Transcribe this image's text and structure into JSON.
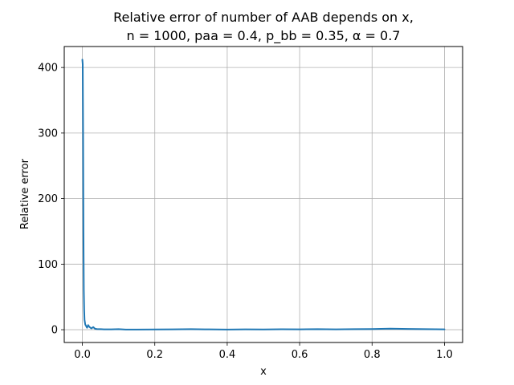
{
  "chart_data": {
    "type": "line",
    "title_lines": [
      "Relative error of number of AAB depends on x,",
      "n = 1000, paa = 0.4, p_bb = 0.35, α = 0.7"
    ],
    "xlabel": "x",
    "ylabel": "Relative error",
    "xlim": [
      -0.05,
      1.05
    ],
    "ylim": [
      -19.5,
      432
    ],
    "x_ticks": [
      0.0,
      0.2,
      0.4,
      0.6,
      0.8,
      1.0
    ],
    "x_tick_labels": [
      "0.0",
      "0.2",
      "0.4",
      "0.6",
      "0.8",
      "1.0"
    ],
    "y_ticks": [
      0,
      100,
      200,
      300,
      400
    ],
    "y_tick_labels": [
      "0",
      "100",
      "200",
      "300",
      "400"
    ],
    "grid": true,
    "line_color": "#1f77b4",
    "series": [
      {
        "x": [
          0.0,
          0.001,
          0.002,
          0.003,
          0.004,
          0.005,
          0.006,
          0.008,
          0.01,
          0.013,
          0.016,
          0.02,
          0.025,
          0.03,
          0.035,
          0.04,
          0.05,
          0.06,
          0.08,
          0.1,
          0.12,
          0.15,
          0.2,
          0.25,
          0.3,
          0.35,
          0.4,
          0.45,
          0.5,
          0.55,
          0.6,
          0.65,
          0.7,
          0.75,
          0.8,
          0.85,
          0.9,
          0.95,
          1.0
        ],
        "y": [
          412,
          405,
          300,
          150,
          60,
          30,
          15,
          8,
          6,
          3,
          7,
          4,
          2,
          4,
          1.5,
          1,
          0.8,
          0.6,
          0.5,
          0.8,
          0.3,
          0.2,
          0.4,
          0.6,
          0.8,
          0.5,
          0.3,
          0.6,
          0.4,
          0.7,
          0.5,
          0.9,
          0.6,
          0.8,
          1.0,
          1.6,
          1.2,
          0.8,
          0.5
        ]
      }
    ]
  }
}
